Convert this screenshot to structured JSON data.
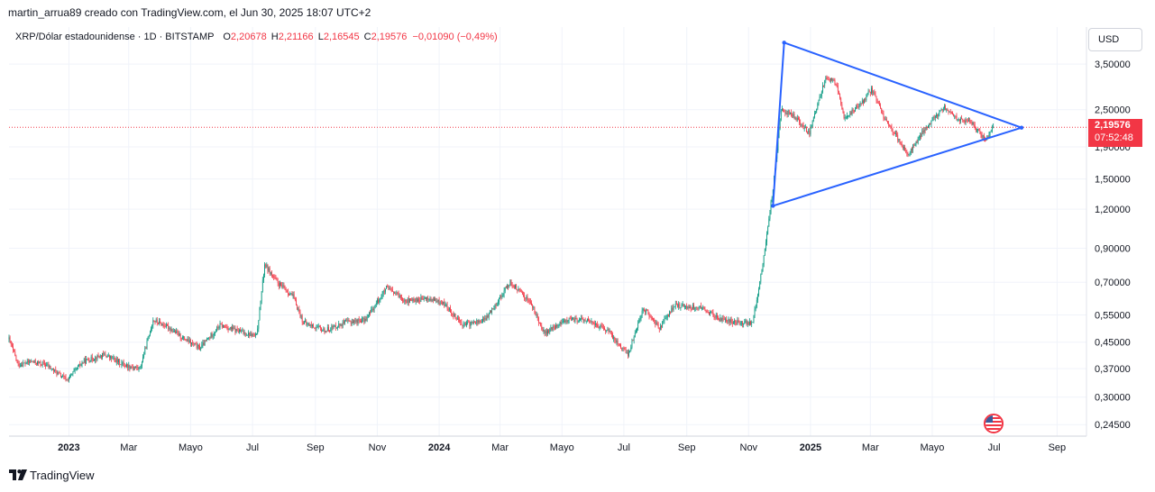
{
  "header": {
    "attribution": "martin_arrua89 creado con TradingView.com, el Jun 30, 2025 18:07 UTC+2"
  },
  "legend": {
    "symbol": "XRP/Dólar estadounidense · 1D · BITSTAMP",
    "open_label": "O",
    "open": "2,20678",
    "high_label": "H",
    "high": "2,21166",
    "low_label": "L",
    "low": "2,16545",
    "close_label": "C",
    "close": "2,19576",
    "change": "−0,01090 (−0,49%)"
  },
  "currency_button": "USD",
  "price_tag": {
    "price": "2,19576",
    "countdown": "07:52:48"
  },
  "footer": {
    "brand": "TradingView"
  },
  "colors": {
    "up": "#089981",
    "down": "#f23645",
    "drawing": "#2962ff",
    "grid": "#f0f3fa"
  },
  "chart_data": {
    "type": "candlestick",
    "y_scale": "log",
    "x_range": [
      "2022-11-03",
      "2025-09-30"
    ],
    "ylim": [
      0.225,
      4.6
    ],
    "y_ticks": [
      {
        "value": 3.5,
        "label": "3,50000"
      },
      {
        "value": 2.5,
        "label": "2,50000"
      },
      {
        "value": 1.9,
        "label": "1,90000"
      },
      {
        "value": 1.5,
        "label": "1,50000"
      },
      {
        "value": 1.2,
        "label": "1,20000"
      },
      {
        "value": 0.9,
        "label": "0,90000"
      },
      {
        "value": 0.7,
        "label": "0,70000"
      },
      {
        "value": 0.55,
        "label": "0,55000"
      },
      {
        "value": 0.45,
        "label": "0,45000"
      },
      {
        "value": 0.37,
        "label": "0,37000"
      },
      {
        "value": 0.3,
        "label": "0,30000"
      },
      {
        "value": 0.245,
        "label": "0,24500"
      }
    ],
    "x_ticks": [
      {
        "date": "2023-01-01",
        "label": "2023",
        "bold": true
      },
      {
        "date": "2023-03-01",
        "label": "Mar"
      },
      {
        "date": "2023-05-01",
        "label": "Mayo"
      },
      {
        "date": "2023-07-01",
        "label": "Jul"
      },
      {
        "date": "2023-09-01",
        "label": "Sep"
      },
      {
        "date": "2023-11-01",
        "label": "Nov"
      },
      {
        "date": "2024-01-01",
        "label": "2024",
        "bold": true
      },
      {
        "date": "2024-03-01",
        "label": "Mar"
      },
      {
        "date": "2024-05-01",
        "label": "Mayo"
      },
      {
        "date": "2024-07-01",
        "label": "Jul"
      },
      {
        "date": "2024-09-01",
        "label": "Sep"
      },
      {
        "date": "2024-11-01",
        "label": "Nov"
      },
      {
        "date": "2025-01-01",
        "label": "2025",
        "bold": true
      },
      {
        "date": "2025-03-01",
        "label": "Mar"
      },
      {
        "date": "2025-05-01",
        "label": "Mayo"
      },
      {
        "date": "2025-07-01",
        "label": "Jul"
      },
      {
        "date": "2025-09-01",
        "label": "Sep"
      }
    ],
    "close_series": [
      {
        "date": "2022-11-03",
        "close": 0.46
      },
      {
        "date": "2022-11-12",
        "close": 0.38
      },
      {
        "date": "2022-11-25",
        "close": 0.39
      },
      {
        "date": "2022-12-10",
        "close": 0.38
      },
      {
        "date": "2022-12-30",
        "close": 0.34
      },
      {
        "date": "2023-01-15",
        "close": 0.39
      },
      {
        "date": "2023-02-05",
        "close": 0.41
      },
      {
        "date": "2023-02-25",
        "close": 0.38
      },
      {
        "date": "2023-03-12",
        "close": 0.37
      },
      {
        "date": "2023-03-25",
        "close": 0.53
      },
      {
        "date": "2023-04-10",
        "close": 0.5
      },
      {
        "date": "2023-04-25",
        "close": 0.46
      },
      {
        "date": "2023-05-10",
        "close": 0.43
      },
      {
        "date": "2023-05-30",
        "close": 0.51
      },
      {
        "date": "2023-06-15",
        "close": 0.49
      },
      {
        "date": "2023-07-05",
        "close": 0.47
      },
      {
        "date": "2023-07-13",
        "close": 0.8
      },
      {
        "date": "2023-07-25",
        "close": 0.7
      },
      {
        "date": "2023-08-10",
        "close": 0.63
      },
      {
        "date": "2023-08-20",
        "close": 0.52
      },
      {
        "date": "2023-09-10",
        "close": 0.49
      },
      {
        "date": "2023-09-30",
        "close": 0.52
      },
      {
        "date": "2023-10-20",
        "close": 0.53
      },
      {
        "date": "2023-11-10",
        "close": 0.67
      },
      {
        "date": "2023-11-30",
        "close": 0.61
      },
      {
        "date": "2023-12-20",
        "close": 0.62
      },
      {
        "date": "2024-01-05",
        "close": 0.6
      },
      {
        "date": "2024-01-25",
        "close": 0.51
      },
      {
        "date": "2024-02-15",
        "close": 0.53
      },
      {
        "date": "2024-03-11",
        "close": 0.7
      },
      {
        "date": "2024-03-30",
        "close": 0.61
      },
      {
        "date": "2024-04-14",
        "close": 0.48
      },
      {
        "date": "2024-05-05",
        "close": 0.53
      },
      {
        "date": "2024-05-25",
        "close": 0.53
      },
      {
        "date": "2024-06-15",
        "close": 0.49
      },
      {
        "date": "2024-07-05",
        "close": 0.41
      },
      {
        "date": "2024-07-20",
        "close": 0.58
      },
      {
        "date": "2024-08-05",
        "close": 0.5
      },
      {
        "date": "2024-08-20",
        "close": 0.59
      },
      {
        "date": "2024-09-15",
        "close": 0.58
      },
      {
        "date": "2024-10-05",
        "close": 0.53
      },
      {
        "date": "2024-10-25",
        "close": 0.52
      },
      {
        "date": "2024-11-05",
        "close": 0.52
      },
      {
        "date": "2024-11-15",
        "close": 0.8
      },
      {
        "date": "2024-11-25",
        "close": 1.4
      },
      {
        "date": "2024-12-03",
        "close": 2.5
      },
      {
        "date": "2024-12-15",
        "close": 2.4
      },
      {
        "date": "2024-12-31",
        "close": 2.1
      },
      {
        "date": "2025-01-16",
        "close": 3.2
      },
      {
        "date": "2025-01-27",
        "close": 3.0
      },
      {
        "date": "2025-02-03",
        "close": 2.35
      },
      {
        "date": "2025-02-20",
        "close": 2.6
      },
      {
        "date": "2025-03-02",
        "close": 2.9
      },
      {
        "date": "2025-03-15",
        "close": 2.35
      },
      {
        "date": "2025-04-07",
        "close": 1.8
      },
      {
        "date": "2025-04-25",
        "close": 2.2
      },
      {
        "date": "2025-05-12",
        "close": 2.55
      },
      {
        "date": "2025-05-25",
        "close": 2.35
      },
      {
        "date": "2025-06-10",
        "close": 2.25
      },
      {
        "date": "2025-06-22",
        "close": 2.0
      },
      {
        "date": "2025-06-30",
        "close": 2.19576
      }
    ],
    "drawing": {
      "type": "triangle",
      "points": [
        {
          "date": "2024-11-25",
          "price": 1.23
        },
        {
          "date": "2024-12-06",
          "price": 4.1
        },
        {
          "date": "2025-07-28",
          "price": 2.19
        }
      ]
    },
    "last_price": 2.19576
  }
}
